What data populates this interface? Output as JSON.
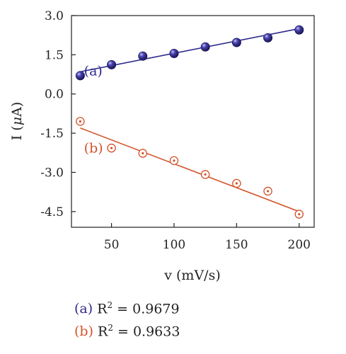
{
  "chart_data": {
    "type": "scatter",
    "xlabel": "v (mV/s)",
    "ylabel": "I (μA)",
    "ylabel_parts": {
      "pre": "I (",
      "greek": "μ",
      "post": "A)"
    },
    "xlim": [
      18,
      212
    ],
    "ylim": [
      -5.1,
      3.0
    ],
    "xticks": [
      50,
      100,
      150,
      200
    ],
    "yticks": [
      3.0,
      1.5,
      0.0,
      -1.5,
      -3.0,
      -4.5
    ],
    "ytick_labels": [
      "3.0",
      "1.5",
      "0.0",
      "-1.5",
      "-3.0",
      "-4.5"
    ],
    "x": [
      25,
      50,
      75,
      100,
      125,
      150,
      175,
      200
    ],
    "series": [
      {
        "name": "(a)",
        "marker": "filled-sphere",
        "color": "#2e2a8c",
        "values": [
          0.7,
          1.12,
          1.45,
          1.55,
          1.8,
          1.97,
          2.15,
          2.45
        ],
        "fit": {
          "x": [
            25,
            200
          ],
          "y": [
            0.85,
            2.5
          ]
        },
        "label_at": {
          "x": 28,
          "y": 0.9
        }
      },
      {
        "name": "(b)",
        "marker": "open-circle",
        "color": "#d2532a",
        "values": [
          -1.05,
          -2.07,
          -2.27,
          -2.55,
          -3.08,
          -3.42,
          -3.72,
          -4.6
        ],
        "fit": {
          "x": [
            25,
            200
          ],
          "y": [
            -1.3,
            -4.5
          ]
        },
        "label_at": {
          "x": 28,
          "y": -2.05
        }
      }
    ]
  },
  "legend": [
    {
      "tag": "(a)",
      "text": "R",
      "sup": "2",
      "value": " = 0.9679",
      "color": "#2e2a8c"
    },
    {
      "tag": "(b)",
      "text": "R",
      "sup": "2",
      "value": " = 0.9633",
      "color": "#d2532a"
    }
  ]
}
